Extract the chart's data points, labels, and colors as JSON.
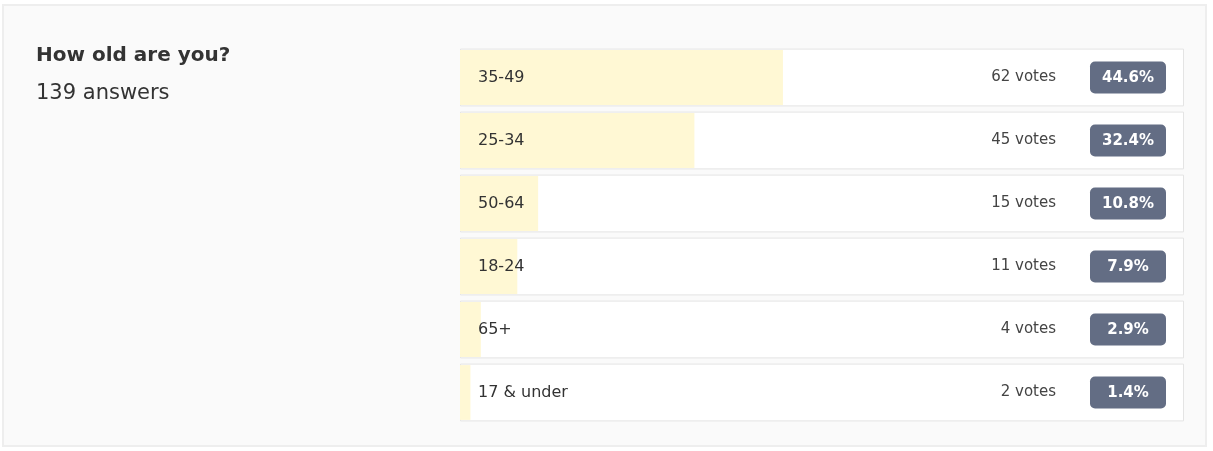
{
  "chart_data": {
    "type": "bar",
    "orientation": "horizontal",
    "title": "How old are you?",
    "subtitle": "139 answers",
    "categories": [
      "35-49",
      "25-34",
      "50-64",
      "18-24",
      "65+",
      "17 & under"
    ],
    "values": [
      62,
      45,
      15,
      11,
      4,
      2
    ],
    "value_labels": [
      "62 votes",
      "45 votes",
      "15 votes",
      "11 votes",
      "4 votes",
      "2 votes"
    ],
    "color": "#fff8d4",
    "xlim": [
      0,
      139
    ],
    "tick_labels": "y",
    "legend": false,
    "annotations": [
      "44.6%",
      "32.4%",
      "10.8%",
      "7.9%",
      "2.9%",
      "1.4%"
    ]
  }
}
